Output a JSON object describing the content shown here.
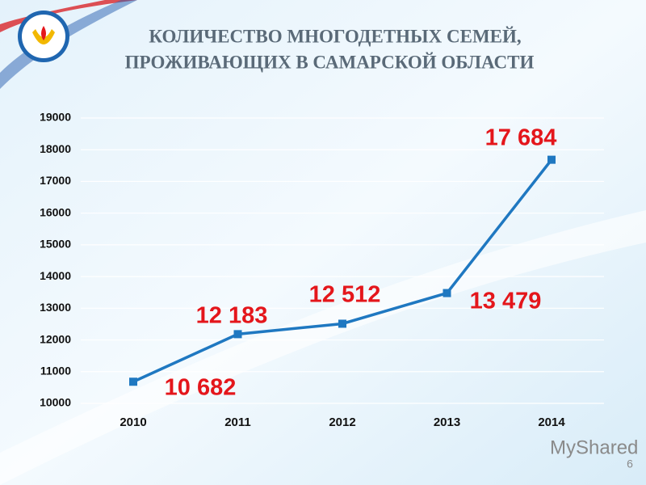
{
  "chart_data": {
    "type": "line",
    "title": [
      "КОЛИЧЕСТВО МНОГОДЕТНЫХ СЕМЕЙ,",
      "ПРОЖИВАЮЩИХ В САМАРСКОЙ ОБЛАСТИ"
    ],
    "categories": [
      "2010",
      "2011",
      "2012",
      "2013",
      "2014"
    ],
    "series": [
      {
        "color": "#1f78c1",
        "values": [
          10682,
          12183,
          12512,
          13479,
          17684
        ],
        "value_labels": [
          "10 682",
          "12 183",
          "12 512",
          "13 479",
          "17 684"
        ]
      }
    ],
    "label_color": "#e4161b",
    "ylim": [
      10000,
      19000
    ],
    "yticks": [
      10000,
      11000,
      12000,
      13000,
      14000,
      15000,
      16000,
      17000,
      18000,
      19000
    ],
    "grid": true
  },
  "watermark": "MyShared",
  "slide_number": "6"
}
